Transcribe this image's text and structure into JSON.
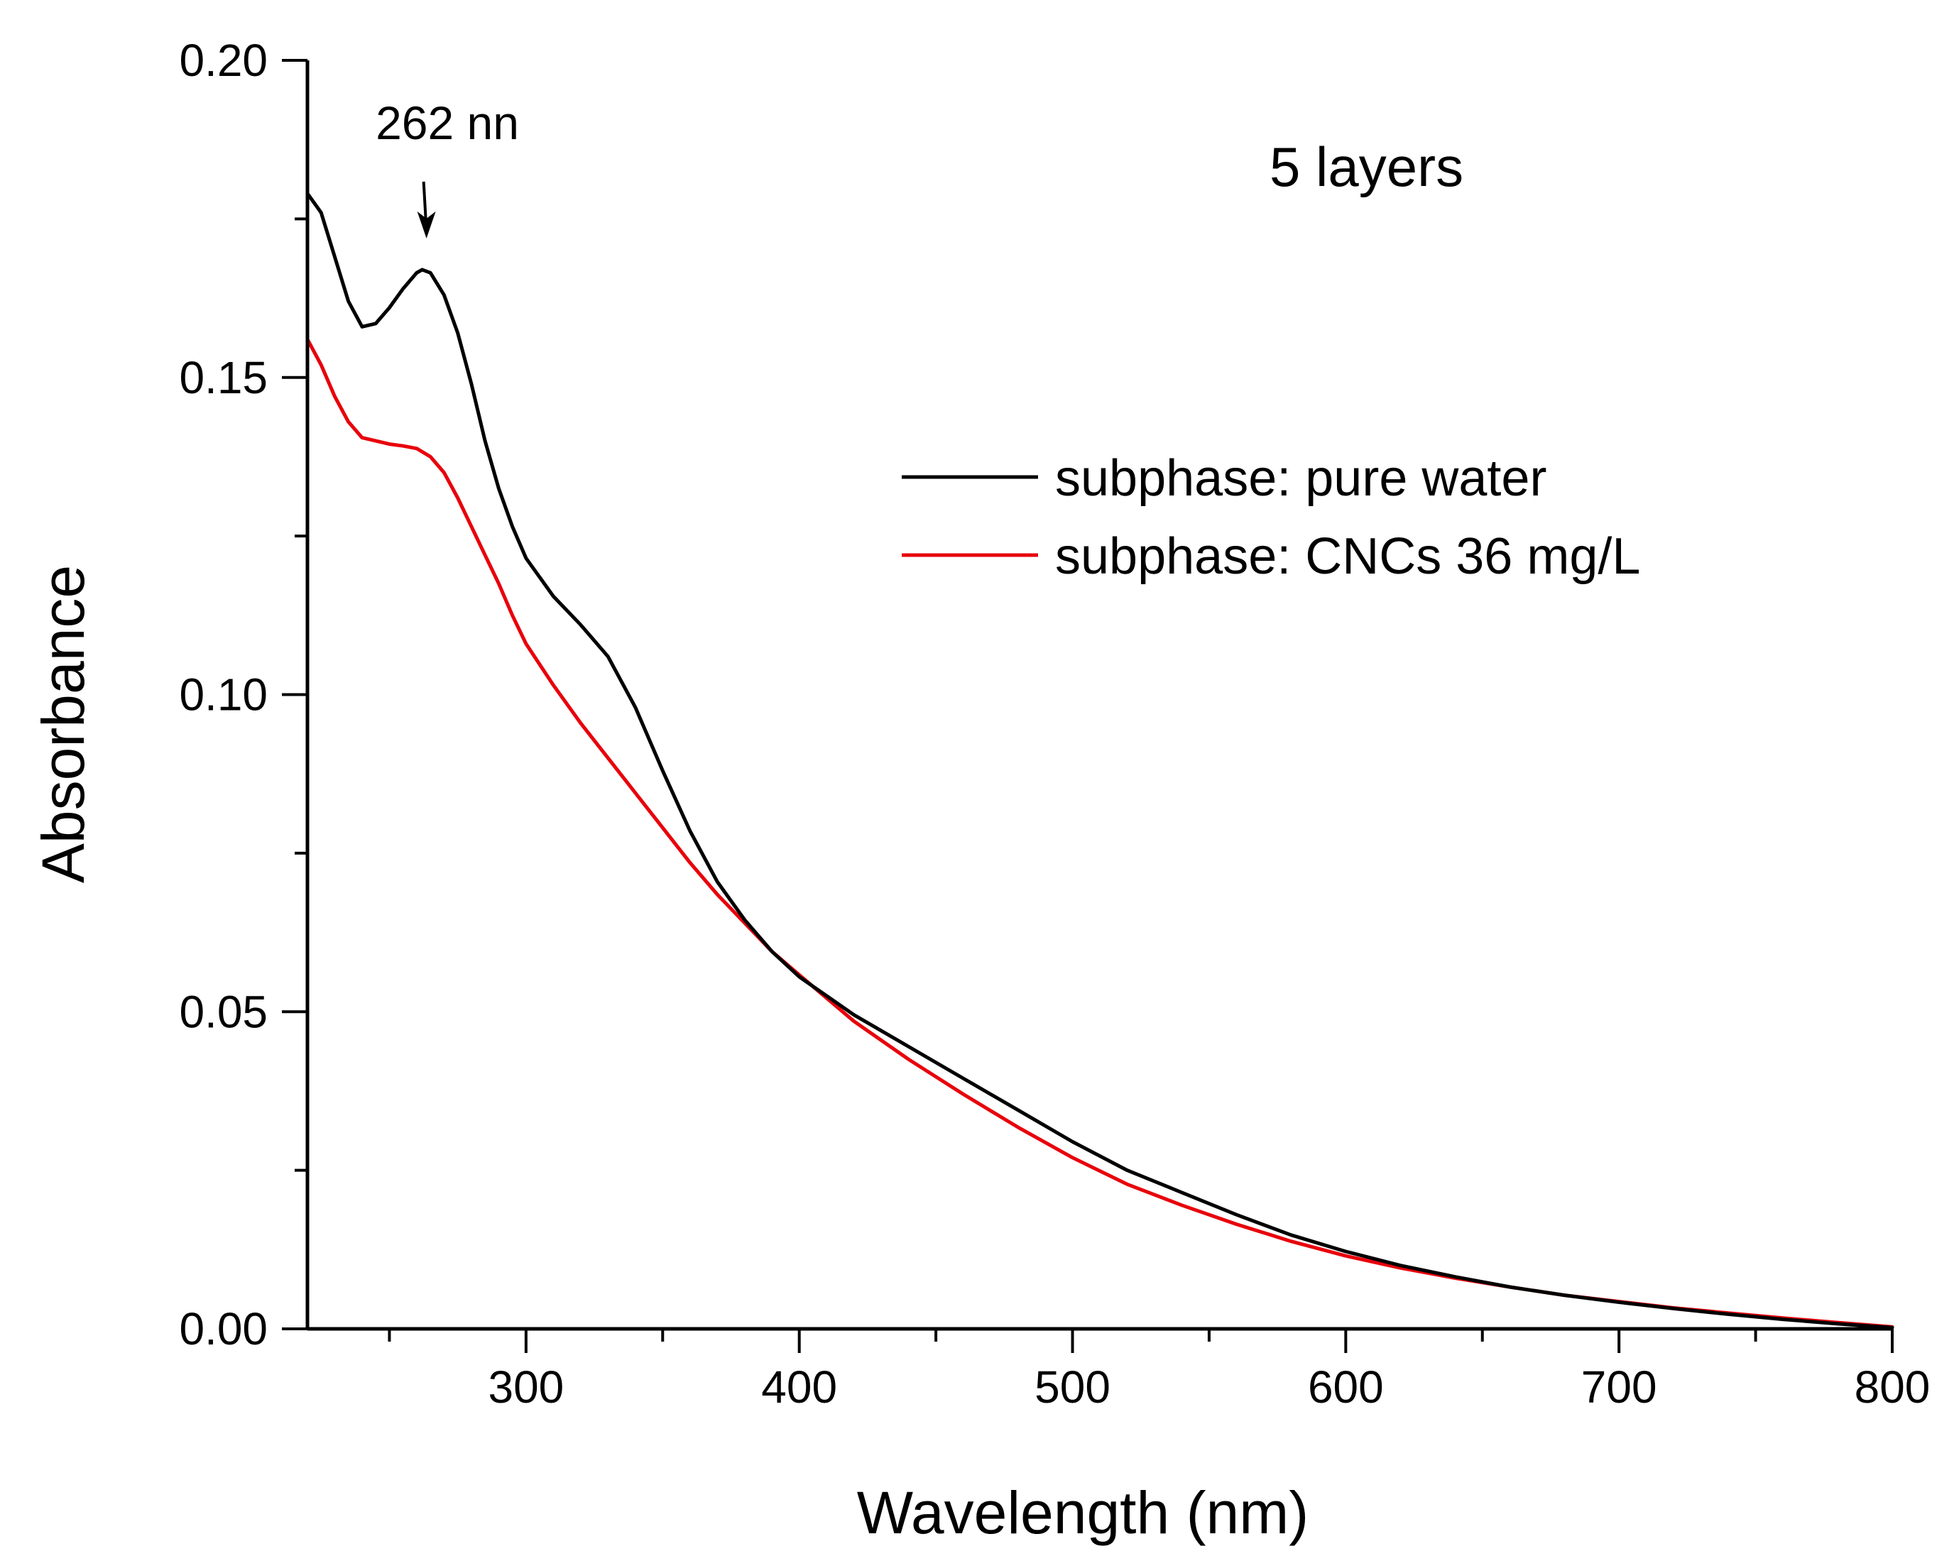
{
  "chart_data": {
    "type": "line",
    "title": "",
    "xlabel": "Wavelength (nm)",
    "ylabel": "Absorbance",
    "xlim": [
      220,
      800
    ],
    "ylim": [
      0,
      0.2
    ],
    "x_ticks": [
      300,
      400,
      500,
      600,
      700,
      800
    ],
    "x_tick_labels": [
      "300",
      "400",
      "500",
      "600",
      "700",
      "800"
    ],
    "x_minor_ticks": [
      250,
      350,
      450,
      550,
      650,
      750
    ],
    "y_ticks": [
      0,
      0.05,
      0.1,
      0.15,
      0.2
    ],
    "y_tick_labels": [
      "0.00",
      "0.05",
      "0.10",
      "0.15",
      "0.20"
    ],
    "y_minor_ticks": [
      0.025,
      0.075,
      0.125,
      0.175
    ],
    "grid": false,
    "legend_position": "upper-right",
    "series": [
      {
        "name": "subphase: pure water",
        "color": "#000000",
        "x": [
          220,
          225,
          230,
          235,
          240,
          245,
          250,
          255,
          260,
          262,
          265,
          270,
          275,
          280,
          285,
          290,
          295,
          300,
          310,
          320,
          330,
          340,
          350,
          360,
          370,
          380,
          390,
          400,
          420,
          440,
          460,
          480,
          500,
          520,
          540,
          560,
          580,
          600,
          620,
          640,
          660,
          680,
          700,
          720,
          740,
          760,
          780,
          800
        ],
        "y": [
          0.179,
          0.176,
          0.169,
          0.162,
          0.158,
          0.1585,
          0.161,
          0.164,
          0.1665,
          0.167,
          0.1665,
          0.163,
          0.157,
          0.149,
          0.14,
          0.1325,
          0.1265,
          0.1215,
          0.1155,
          0.111,
          0.106,
          0.098,
          0.088,
          0.0785,
          0.0705,
          0.0645,
          0.0595,
          0.0555,
          0.0495,
          0.0445,
          0.0395,
          0.0345,
          0.0295,
          0.025,
          0.0215,
          0.018,
          0.0148,
          0.0122,
          0.01,
          0.0082,
          0.0066,
          0.0053,
          0.0042,
          0.0032,
          0.0023,
          0.0015,
          0.0008,
          0.0002
        ]
      },
      {
        "name": "subphase: CNCs 36 mg/L",
        "color": "#e8000b",
        "x": [
          220,
          225,
          230,
          235,
          240,
          245,
          250,
          255,
          260,
          265,
          270,
          275,
          280,
          285,
          290,
          295,
          300,
          310,
          320,
          330,
          340,
          350,
          360,
          370,
          380,
          390,
          400,
          420,
          440,
          460,
          480,
          500,
          520,
          540,
          560,
          580,
          600,
          620,
          640,
          660,
          680,
          700,
          720,
          740,
          760,
          780,
          800
        ],
        "y": [
          0.156,
          0.152,
          0.147,
          0.143,
          0.1405,
          0.14,
          0.1395,
          0.1392,
          0.1388,
          0.1375,
          0.135,
          0.131,
          0.1265,
          0.122,
          0.1175,
          0.1125,
          0.108,
          0.1015,
          0.0955,
          0.09,
          0.0845,
          0.079,
          0.0735,
          0.0685,
          0.064,
          0.0595,
          0.0558,
          0.0485,
          0.0425,
          0.037,
          0.0318,
          0.027,
          0.0228,
          0.0195,
          0.0165,
          0.0138,
          0.0115,
          0.0096,
          0.008,
          0.0066,
          0.0053,
          0.0043,
          0.0033,
          0.0025,
          0.0017,
          0.001,
          0.0003
        ]
      }
    ],
    "annotations": [
      {
        "text": "262 nn",
        "x": 262,
        "y": 0.167,
        "arrow": true
      },
      {
        "text": "5 layers"
      }
    ]
  }
}
